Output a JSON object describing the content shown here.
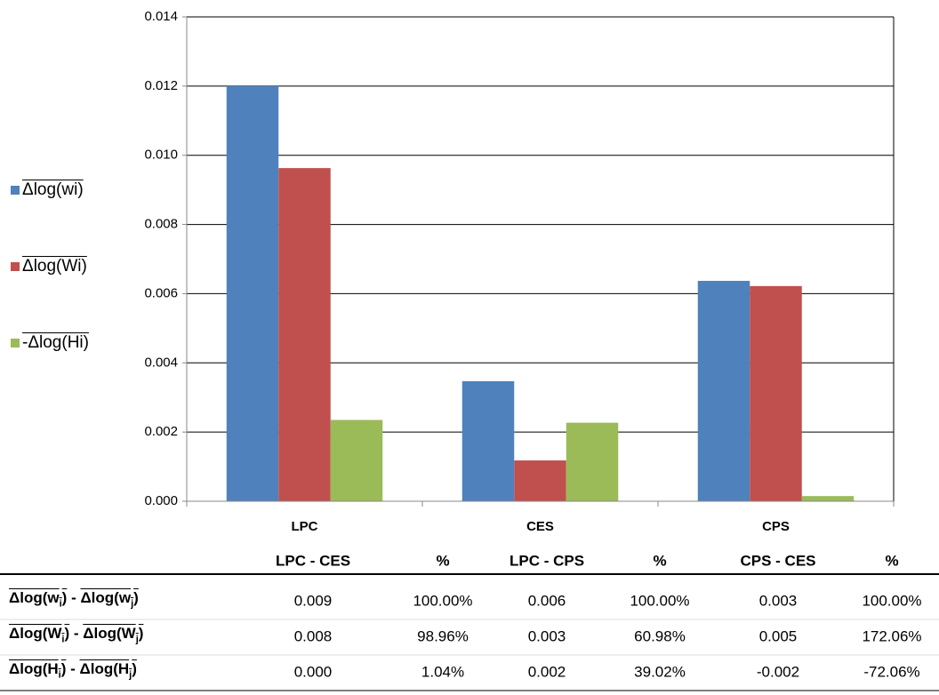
{
  "chart_data": {
    "type": "bar",
    "categories": [
      "LPC",
      "CES",
      "CPS"
    ],
    "series": [
      {
        "name": "Δlog(wi)",
        "color": "#4f81bd",
        "values": [
          0.012,
          0.00347,
          0.00637
        ]
      },
      {
        "name": "Δlog(Wi)",
        "color": "#c0504d",
        "values": [
          0.00963,
          0.00118,
          0.00622
        ]
      },
      {
        "name": "-Δlog(Hi)",
        "color": "#9bbb59",
        "values": [
          0.00235,
          0.00227,
          0.00015
        ]
      }
    ],
    "ylim": [
      0,
      0.014
    ],
    "yticks": [
      {
        "value": 0,
        "label": "0.000"
      },
      {
        "value": 0.002,
        "label": "0.002"
      },
      {
        "value": 0.004,
        "label": "0.004"
      },
      {
        "value": 0.006,
        "label": "0.006"
      },
      {
        "value": 0.008,
        "label": "0.008"
      },
      {
        "value": 0.01,
        "label": "0.010"
      },
      {
        "value": 0.012,
        "label": "0.012"
      },
      {
        "value": 0.014,
        "label": "0.014"
      }
    ],
    "grid": true,
    "legend": "left"
  },
  "table": {
    "headers": [
      "LPC - CES",
      "%",
      "LPC - CPS",
      "%",
      "CPS - CES",
      "%"
    ],
    "rows": [
      {
        "label": {
          "left": [
            "Δlog(w",
            "i",
            ")"
          ],
          "op": " - ",
          "right": [
            "Δlog(w",
            "j",
            ")"
          ]
        },
        "cells": [
          "0.009",
          "100.00%",
          "0.006",
          "100.00%",
          "0.003",
          "100.00%"
        ]
      },
      {
        "label": {
          "left": [
            "Δlog(W",
            "i",
            ")"
          ],
          "op": " - ",
          "right": [
            "Δlog(W",
            "j",
            ")"
          ]
        },
        "cells": [
          "0.008",
          "98.96%",
          "0.003",
          "60.98%",
          "0.005",
          "172.06%"
        ]
      },
      {
        "label": {
          "left": [
            "Δlog(H",
            "i",
            ")"
          ],
          "op": " - ",
          "right": [
            "Δlog(H",
            "j",
            ")"
          ]
        },
        "cells": [
          "0.000",
          "1.04%",
          "0.002",
          "39.02%",
          "-0.002",
          "-72.06%"
        ]
      }
    ]
  }
}
